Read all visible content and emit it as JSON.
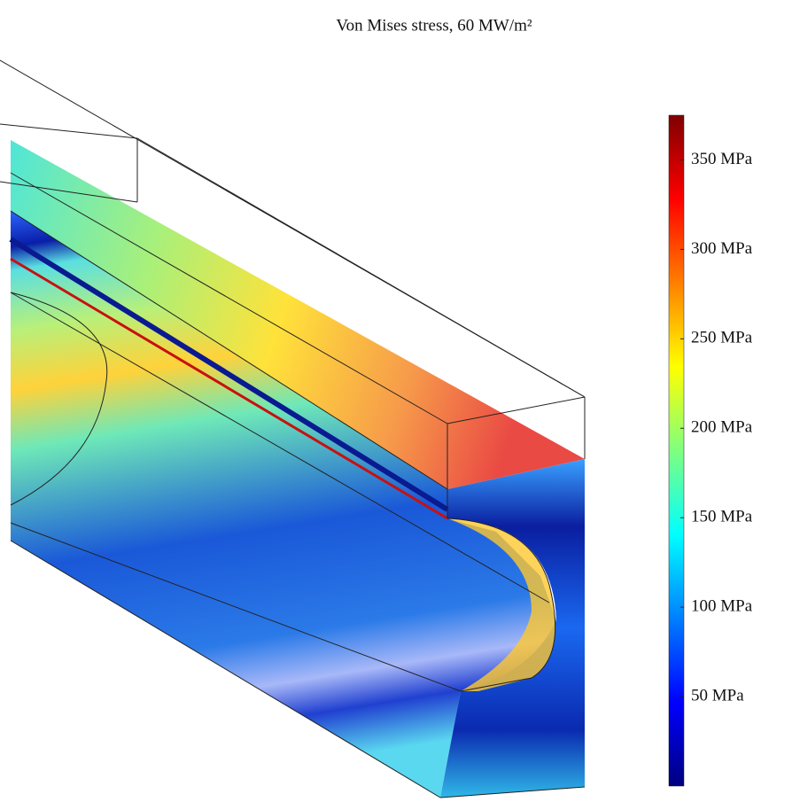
{
  "chart_data": {
    "type": "colorbar",
    "title": "Von Mises stress, 60 MW/m²",
    "colormap": "jet",
    "zlim": [
      0,
      375
    ],
    "zticks": [
      {
        "value": 50,
        "label": "50 MPa"
      },
      {
        "value": 100,
        "label": "100 MPa"
      },
      {
        "value": 150,
        "label": "150 MPa"
      },
      {
        "value": 200,
        "label": "200 MPa"
      },
      {
        "value": 250,
        "label": "250 MPa"
      },
      {
        "value": 300,
        "label": "300 MPa"
      },
      {
        "value": 350,
        "label": "350 MPa"
      }
    ]
  }
}
